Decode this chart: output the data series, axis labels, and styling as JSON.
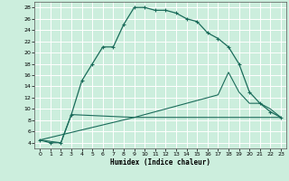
{
  "xlabel": "Humidex (Indice chaleur)",
  "bg_color": "#cceedd",
  "grid_color": "#ffffff",
  "line_color": "#1a6b5a",
  "xlim": [
    -0.5,
    23.5
  ],
  "ylim": [
    3,
    29
  ],
  "xticks": [
    0,
    1,
    2,
    3,
    4,
    5,
    6,
    7,
    8,
    9,
    10,
    11,
    12,
    13,
    14,
    15,
    16,
    17,
    18,
    19,
    20,
    21,
    22,
    23
  ],
  "yticks": [
    4,
    6,
    8,
    10,
    12,
    14,
    16,
    18,
    20,
    22,
    24,
    26,
    28
  ],
  "curve1_x": [
    0,
    1,
    2,
    3,
    4,
    5,
    6,
    7,
    8,
    9,
    10,
    11,
    12,
    13,
    14,
    15,
    16,
    17,
    18,
    19,
    20,
    21,
    22,
    23
  ],
  "curve1_y": [
    4.5,
    4.0,
    4.0,
    9.0,
    15.0,
    18.0,
    21.0,
    21.0,
    25.0,
    28.0,
    28.0,
    27.5,
    27.5,
    27.0,
    26.0,
    25.5,
    23.5,
    22.5,
    21.0,
    18.0,
    13.0,
    11.0,
    9.5,
    8.5
  ],
  "curve2_x": [
    0,
    2,
    3,
    9,
    10,
    11,
    12,
    13,
    14,
    15,
    16,
    17,
    18,
    19,
    20,
    21,
    22,
    23
  ],
  "curve2_y": [
    4.5,
    4.0,
    9.0,
    8.5,
    8.5,
    8.5,
    8.5,
    8.5,
    8.5,
    8.5,
    8.5,
    8.5,
    8.5,
    8.5,
    8.5,
    8.5,
    8.5,
    8.5
  ],
  "curve3_x": [
    0,
    9,
    10,
    11,
    12,
    13,
    14,
    15,
    16,
    17,
    18,
    19,
    20,
    21,
    22,
    23
  ],
  "curve3_y": [
    4.5,
    8.5,
    9.0,
    9.5,
    10.0,
    10.5,
    11.0,
    11.5,
    12.0,
    12.5,
    16.5,
    13.0,
    11.0,
    11.0,
    10.0,
    8.5
  ]
}
